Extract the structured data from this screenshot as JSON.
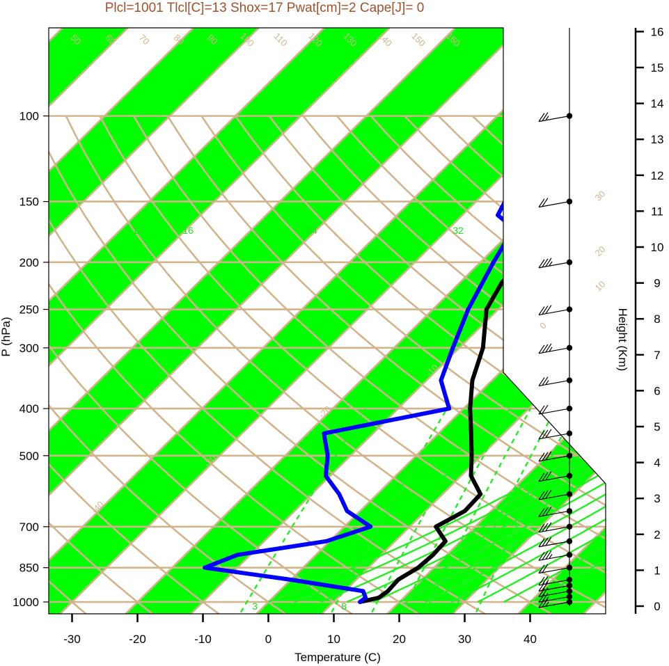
{
  "colors": {
    "band": "#00ff00",
    "isotherm": "#d2b48c",
    "isobar": "#d2b48c",
    "adiabat": "#d2b48c",
    "moist_adiabat": "#22ee22",
    "mixing_ratio": "#22ee22",
    "temperature": "#000000",
    "dewpoint": "#0000ff",
    "title": "#a0522d",
    "label_tan": "#d2b48c"
  },
  "chart_data": {
    "type": "line",
    "subtype": "skew-T log-P sounding",
    "title": "Plcl=1001 Tlcl[C]=13 Shox=17 Pwat[cm]=2 Cape[J]= 0",
    "xlabel": "Temperature (C)",
    "ylabel": "P (hPa)",
    "y2label": "Height (Km)",
    "xlim": [
      -33,
      52
    ],
    "ylim": [
      1050,
      100
    ],
    "y_scale": "log",
    "x_ticks": [
      -30,
      -20,
      -10,
      0,
      10,
      20,
      30,
      40
    ],
    "y_ticks": [
      100,
      150,
      200,
      250,
      300,
      400,
      500,
      700,
      850,
      1000
    ],
    "height_ticks": [
      0,
      1,
      2,
      3,
      4,
      5,
      6,
      7,
      8,
      9,
      10,
      11,
      12,
      13,
      14,
      15,
      16
    ],
    "isotherm_labels": [
      {
        "t": -40,
        "text": "-40"
      },
      {
        "t": -30,
        "text": "-30"
      },
      {
        "t": -20,
        "text": "-20"
      },
      {
        "t": -10,
        "text": "-10"
      },
      {
        "t": 0,
        "text": "0"
      },
      {
        "t": 10,
        "text": "10"
      },
      {
        "t": 20,
        "text": "20"
      },
      {
        "t": 30,
        "text": "30"
      }
    ],
    "adiabat_labels": [
      "50",
      "60",
      "70",
      "80",
      "90",
      "100",
      "110",
      "120",
      "130",
      "140",
      "150",
      "160"
    ],
    "moist_labels": [
      "12",
      "16",
      "24",
      "32"
    ],
    "mixing_labels": [
      "3",
      "8"
    ],
    "series": [
      {
        "key": "temperature",
        "pressure": [
          1000,
          980,
          950,
          900,
          850,
          800,
          750,
          700,
          650,
          600,
          550,
          500,
          450,
          400,
          350,
          300,
          250,
          220,
          200,
          180,
          170,
          160,
          150,
          140,
          130,
          120,
          110,
          100
        ],
        "values": [
          14,
          16.2,
          16.6,
          16.4,
          17.6,
          17.9,
          17.7,
          14.0,
          16.0,
          15.8,
          11.5,
          8.5,
          5.0,
          1.0,
          -3.0,
          -6.4,
          -11.8,
          -13.6,
          -13.8,
          -11.2,
          -9.4,
          -5.8,
          -2.8,
          1.8,
          4.8,
          9.4,
          11.4,
          13.6
        ]
      },
      {
        "key": "dewpoint",
        "pressure": [
          1000,
          980,
          950,
          900,
          850,
          800,
          750,
          700,
          650,
          600,
          550,
          500,
          450,
          400,
          350,
          300,
          250,
          200,
          180,
          170,
          160,
          150,
          140,
          130,
          120,
          110,
          100
        ],
        "values": [
          14,
          14.2,
          12.8,
          0.0,
          -15.0,
          -12.0,
          -0.5,
          4.0,
          -2.0,
          -5.8,
          -10.7,
          -13.5,
          -17.5,
          -2.2,
          -7.8,
          -11.0,
          -14.6,
          -18.0,
          -19.4,
          -20.2,
          -24.6,
          -25.6,
          -27.0,
          -23.5,
          -17.8,
          -17.0,
          -14.0
        ]
      }
    ],
    "wind_barbs": {
      "pressure": [
        1000,
        975,
        950,
        925,
        900,
        850,
        800,
        750,
        700,
        650,
        600,
        550,
        500,
        450,
        400,
        350,
        300,
        250,
        200,
        150,
        100
      ],
      "speed_kt": [
        15,
        15,
        20,
        20,
        15,
        20,
        25,
        30,
        30,
        30,
        30,
        30,
        30,
        30,
        20,
        15,
        25,
        30,
        25,
        20,
        15
      ]
    }
  }
}
